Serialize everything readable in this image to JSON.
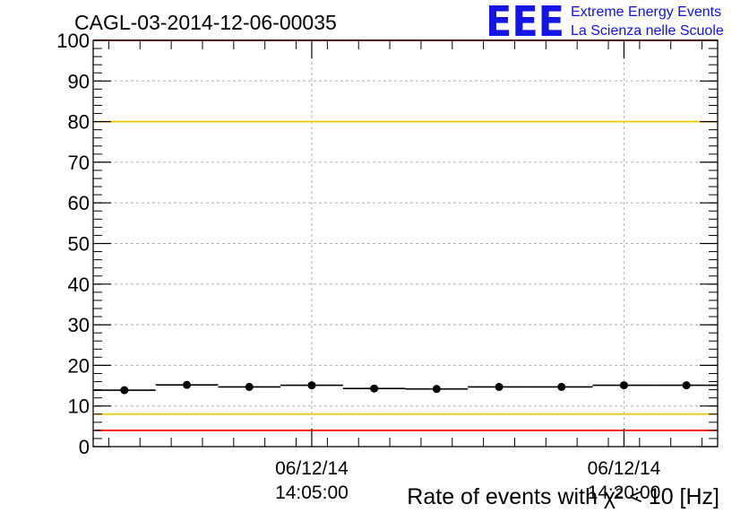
{
  "chart_data": {
    "type": "scatter",
    "title": "CAGL-03-2014-12-06-00035",
    "xlabel": "Rate of events with χ² < 10 [Hz]",
    "ylabel": "",
    "ylim": [
      0,
      100
    ],
    "y_ticks": [
      "0",
      "10",
      "20",
      "30",
      "40",
      "50",
      "60",
      "70",
      "80",
      "90",
      "100"
    ],
    "x_tick_labels": [
      {
        "date": "06/12/14",
        "time": "14:05:00"
      },
      {
        "date": "06/12/14",
        "time": "14:20:00"
      }
    ],
    "grid": true,
    "series": [
      {
        "values": [
          13.9,
          15.2,
          14.7,
          15.1,
          14.3,
          14.2,
          14.7,
          14.7,
          15.1,
          15.1
        ]
      }
    ],
    "reference_lines": [
      {
        "y": 80,
        "color": "#f0c800"
      },
      {
        "y": 8,
        "color": "#f0c800"
      },
      {
        "y": 100,
        "color": "#ff0000"
      },
      {
        "y": 4,
        "color": "#ff0000"
      }
    ]
  },
  "logo": {
    "mark": "EEE",
    "line1": "Extreme Energy Events",
    "line2": "La Scienza nelle Scuole"
  },
  "colors": {
    "logo": "#1515e6",
    "grid": "#b0b0b0"
  }
}
